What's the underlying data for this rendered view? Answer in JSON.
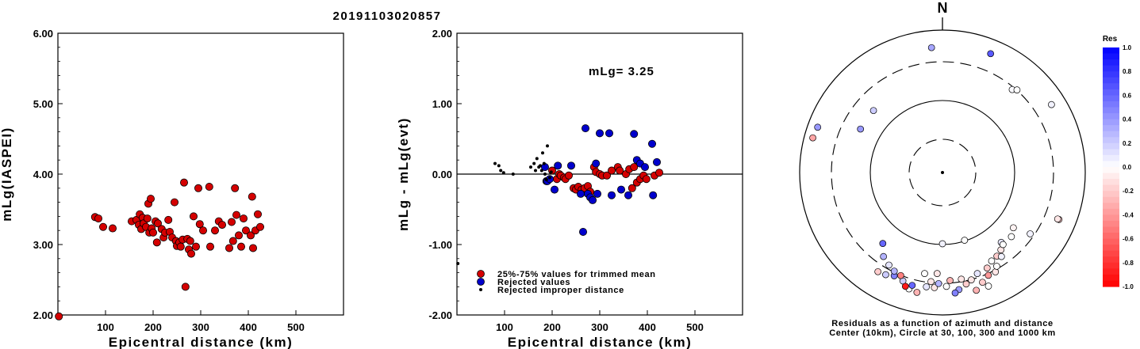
{
  "title": "20191103020857",
  "chart_data": [
    {
      "type": "scatter",
      "name": "magnitude-vs-distance",
      "xlabel": "Epicentral distance (km)",
      "ylabel": "mLg(IASPEI)",
      "xlim": [
        0,
        600
      ],
      "ylim": [
        2.0,
        6.0
      ],
      "xticks": [
        "100",
        "200",
        "300",
        "400",
        "500"
      ],
      "yticks": [
        "2.00",
        "3.00",
        "4.00",
        "5.00",
        "6.00"
      ],
      "point_color": "#d40000",
      "points": [
        [
          2,
          1.98
        ],
        [
          78,
          3.39
        ],
        [
          85,
          3.37
        ],
        [
          95,
          3.25
        ],
        [
          115,
          3.23
        ],
        [
          155,
          3.33
        ],
        [
          165,
          3.35
        ],
        [
          170,
          3.28
        ],
        [
          172,
          3.43
        ],
        [
          175,
          3.22
        ],
        [
          178,
          3.38
        ],
        [
          180,
          3.3
        ],
        [
          185,
          3.25
        ],
        [
          188,
          3.37
        ],
        [
          190,
          3.58
        ],
        [
          192,
          3.17
        ],
        [
          195,
          3.65
        ],
        [
          197,
          3.23
        ],
        [
          200,
          3.17
        ],
        [
          205,
          3.33
        ],
        [
          208,
          3.03
        ],
        [
          210,
          3.3
        ],
        [
          218,
          3.22
        ],
        [
          222,
          3.1
        ],
        [
          225,
          3.17
        ],
        [
          232,
          3.35
        ],
        [
          235,
          3.18
        ],
        [
          240,
          3.1
        ],
        [
          245,
          3.6
        ],
        [
          248,
          3.05
        ],
        [
          250,
          2.98
        ],
        [
          255,
          3.03
        ],
        [
          258,
          2.97
        ],
        [
          262,
          3.07
        ],
        [
          265,
          3.88
        ],
        [
          268,
          2.4
        ],
        [
          272,
          3.08
        ],
        [
          275,
          2.93
        ],
        [
          278,
          3.05
        ],
        [
          280,
          2.87
        ],
        [
          285,
          3.4
        ],
        [
          290,
          2.97
        ],
        [
          295,
          3.8
        ],
        [
          298,
          3.29
        ],
        [
          305,
          3.2
        ],
        [
          318,
          3.82
        ],
        [
          320,
          2.97
        ],
        [
          330,
          3.2
        ],
        [
          338,
          3.33
        ],
        [
          345,
          3.28
        ],
        [
          360,
          2.95
        ],
        [
          365,
          3.32
        ],
        [
          368,
          3.05
        ],
        [
          372,
          3.8
        ],
        [
          375,
          3.42
        ],
        [
          380,
          3.13
        ],
        [
          385,
          2.97
        ],
        [
          390,
          3.37
        ],
        [
          395,
          3.2
        ],
        [
          405,
          3.13
        ],
        [
          408,
          3.68
        ],
        [
          410,
          2.95
        ],
        [
          415,
          3.2
        ],
        [
          420,
          3.43
        ],
        [
          425,
          3.25
        ]
      ]
    },
    {
      "type": "scatter",
      "name": "residual-vs-distance",
      "xlabel": "Epicentral distance (km)",
      "ylabel": "mLg - mLg(evt)",
      "xlim": [
        0,
        600
      ],
      "ylim": [
        -2.0,
        2.0
      ],
      "xticks": [
        "100",
        "200",
        "300",
        "400",
        "500"
      ],
      "yticks": [
        "-2.00",
        "-1.00",
        "0.00",
        "1.00",
        "2.00"
      ],
      "annotation": "mLg= 3.25",
      "legend": [
        {
          "label": "25%-75% values for trimmed mean",
          "color": "#d40000",
          "size": "large"
        },
        {
          "label": "Rejected values",
          "color": "#0000cc",
          "size": "large"
        },
        {
          "label": "Rejected improper distance",
          "color": "#000000",
          "size": "small"
        }
      ],
      "series": [
        {
          "color": "#d40000",
          "size": "large",
          "points": [
            [
              200,
              0.05
            ],
            [
              210,
              -0.07
            ],
            [
              215,
              0.0
            ],
            [
              218,
              -0.02
            ],
            [
              225,
              -0.05
            ],
            [
              228,
              -0.07
            ],
            [
              235,
              -0.02
            ],
            [
              245,
              -0.2
            ],
            [
              250,
              -0.22
            ],
            [
              255,
              -0.18
            ],
            [
              262,
              -0.22
            ],
            [
              268,
              -0.2
            ],
            [
              275,
              -0.17
            ],
            [
              280,
              -0.25
            ],
            [
              288,
              0.1
            ],
            [
              292,
              0.03
            ],
            [
              300,
              0.0
            ],
            [
              305,
              -0.02
            ],
            [
              315,
              -0.02
            ],
            [
              325,
              0.05
            ],
            [
              338,
              0.1
            ],
            [
              342,
              0.05
            ],
            [
              355,
              0.0
            ],
            [
              362,
              0.07
            ],
            [
              368,
              -0.2
            ],
            [
              372,
              0.1
            ],
            [
              378,
              -0.12
            ],
            [
              385,
              -0.07
            ],
            [
              392,
              -0.02
            ],
            [
              398,
              -0.07
            ],
            [
              415,
              -0.02
            ],
            [
              425,
              0.02
            ]
          ]
        },
        {
          "color": "#0000cc",
          "size": "large",
          "points": [
            [
              185,
              0.1
            ],
            [
              188,
              -0.1
            ],
            [
              190,
              -0.1
            ],
            [
              195,
              -0.07
            ],
            [
              205,
              -0.22
            ],
            [
              212,
              0.12
            ],
            [
              240,
              0.12
            ],
            [
              260,
              -0.28
            ],
            [
              265,
              -0.82
            ],
            [
              270,
              0.65
            ],
            [
              275,
              -0.28
            ],
            [
              280,
              -0.33
            ],
            [
              285,
              -0.37
            ],
            [
              292,
              0.15
            ],
            [
              295,
              -0.28
            ],
            [
              300,
              0.58
            ],
            [
              320,
              0.58
            ],
            [
              325,
              -0.3
            ],
            [
              345,
              -0.22
            ],
            [
              360,
              -0.3
            ],
            [
              372,
              0.57
            ],
            [
              378,
              0.2
            ],
            [
              385,
              0.15
            ],
            [
              395,
              0.1
            ],
            [
              410,
              0.43
            ],
            [
              412,
              -0.3
            ],
            [
              420,
              0.17
            ]
          ]
        },
        {
          "color": "#000000",
          "size": "small",
          "points": [
            [
              2,
              -1.27
            ],
            [
              80,
              0.15
            ],
            [
              88,
              0.12
            ],
            [
              92,
              0.05
            ],
            [
              98,
              0.02
            ],
            [
              118,
              0.0
            ],
            [
              155,
              0.1
            ],
            [
              162,
              0.15
            ],
            [
              165,
              0.05
            ],
            [
              168,
              0.22
            ],
            [
              172,
              0.1
            ],
            [
              175,
              0.12
            ],
            [
              178,
              0.05
            ],
            [
              180,
              0.3
            ],
            [
              183,
              0.15
            ],
            [
              185,
              0.0
            ],
            [
              188,
              -0.08
            ],
            [
              190,
              0.4
            ],
            [
              195,
              -0.05
            ],
            [
              198,
              0.03
            ]
          ]
        }
      ]
    },
    {
      "type": "polar-scatter",
      "name": "azimuthal-residuals",
      "north_label": "N",
      "caption_line1": "Residuals as a function of azimuth and distance",
      "caption_line2": "Center (10km), Circle at 30, 100, 300 and 1000 km",
      "colorbar_title": "Res",
      "colorbar_ticks": [
        "1.0",
        "0.8",
        "0.6",
        "0.4",
        "0.2",
        "0.0",
        "-0.2",
        "-0.4",
        "-0.6",
        "-0.8",
        "-1.0"
      ],
      "points": [
        {
          "az": 355,
          "r": 0.88,
          "res": 0.35
        },
        {
          "az": 22,
          "r": 0.9,
          "res": 0.65
        },
        {
          "az": 40,
          "r": 0.76,
          "res": 0.02
        },
        {
          "az": 42,
          "r": 0.78,
          "res": 0.0
        },
        {
          "az": 58,
          "r": 0.9,
          "res": 0.05
        },
        {
          "az": 312,
          "r": 0.65,
          "res": 0.2
        },
        {
          "az": 298,
          "r": 0.65,
          "res": 0.4
        },
        {
          "az": 290,
          "r": 0.93,
          "res": 0.4
        },
        {
          "az": 285,
          "r": 0.94,
          "res": -0.35
        },
        {
          "az": 112,
          "r": 0.88,
          "res": -0.2
        },
        {
          "az": 112,
          "r": 0.87,
          "res": -0.1
        },
        {
          "az": 125,
          "r": 0.75,
          "res": 0.05
        },
        {
          "az": 128,
          "r": 0.63,
          "res": -0.05
        },
        {
          "az": 133,
          "r": 0.66,
          "res": 0.0
        },
        {
          "az": 140,
          "r": 0.64,
          "res": 0.1
        },
        {
          "az": 162,
          "r": 0.5,
          "res": 0.0
        },
        {
          "az": 180,
          "r": 0.5,
          "res": 0.05
        },
        {
          "az": 220,
          "r": 0.65,
          "res": 0.6
        },
        {
          "az": 215,
          "r": 0.72,
          "res": 0.3
        },
        {
          "az": 210,
          "r": 0.75,
          "res": 0.1
        },
        {
          "az": 205,
          "r": 0.8,
          "res": 0.5
        },
        {
          "az": 200,
          "r": 0.81,
          "res": 0.2
        },
        {
          "az": 196,
          "r": 0.85,
          "res": 0.0
        },
        {
          "az": 192,
          "r": 0.86,
          "res": -0.3
        },
        {
          "az": 195,
          "r": 0.82,
          "res": 0.6
        },
        {
          "az": 188,
          "r": 0.81,
          "res": 0.1
        },
        {
          "az": 184,
          "r": 0.81,
          "res": -0.1
        },
        {
          "az": 178,
          "r": 0.8,
          "res": 0.0
        },
        {
          "az": 172,
          "r": 0.83,
          "res": 0.4
        },
        {
          "az": 168,
          "r": 0.8,
          "res": -0.2
        },
        {
          "az": 165,
          "r": 0.78,
          "res": -0.1
        },
        {
          "az": 160,
          "r": 0.82,
          "res": -0.2
        },
        {
          "az": 156,
          "r": 0.79,
          "res": -0.4
        },
        {
          "az": 152,
          "r": 0.79,
          "res": -0.1
        },
        {
          "az": 150,
          "r": 0.76,
          "res": 0.0
        },
        {
          "az": 147,
          "r": 0.7,
          "res": -0.2
        },
        {
          "az": 145,
          "r": 0.72,
          "res": 0.05
        },
        {
          "az": 143,
          "r": 0.68,
          "res": -0.1
        },
        {
          "az": 140,
          "r": 0.66,
          "res": 0.0
        },
        {
          "az": 198,
          "r": 0.84,
          "res": -0.9
        },
        {
          "az": 202,
          "r": 0.78,
          "res": -0.5
        },
        {
          "az": 206,
          "r": 0.77,
          "res": 0.3
        },
        {
          "az": 186,
          "r": 0.77,
          "res": -0.1
        },
        {
          "az": 182,
          "r": 0.78,
          "res": 0.3
        },
        {
          "az": 176,
          "r": 0.76,
          "res": -0.3
        },
        {
          "az": 170,
          "r": 0.76,
          "res": -0.1
        },
        {
          "az": 174,
          "r": 0.85,
          "res": 0.5
        },
        {
          "az": 164,
          "r": 0.86,
          "res": -0.3
        },
        {
          "az": 158,
          "r": 0.86,
          "res": 0.0
        },
        {
          "az": 190,
          "r": 0.72,
          "res": 0.0
        },
        {
          "az": 183,
          "r": 0.71,
          "res": -0.1
        },
        {
          "az": 161,
          "r": 0.75,
          "res": 0.1
        },
        {
          "az": 155,
          "r": 0.74,
          "res": -0.2
        },
        {
          "az": 151,
          "r": 0.71,
          "res": 0.0
        },
        {
          "az": 209,
          "r": 0.82,
          "res": 0.2
        },
        {
          "az": 213,
          "r": 0.83,
          "res": -0.2
        }
      ]
    }
  ]
}
